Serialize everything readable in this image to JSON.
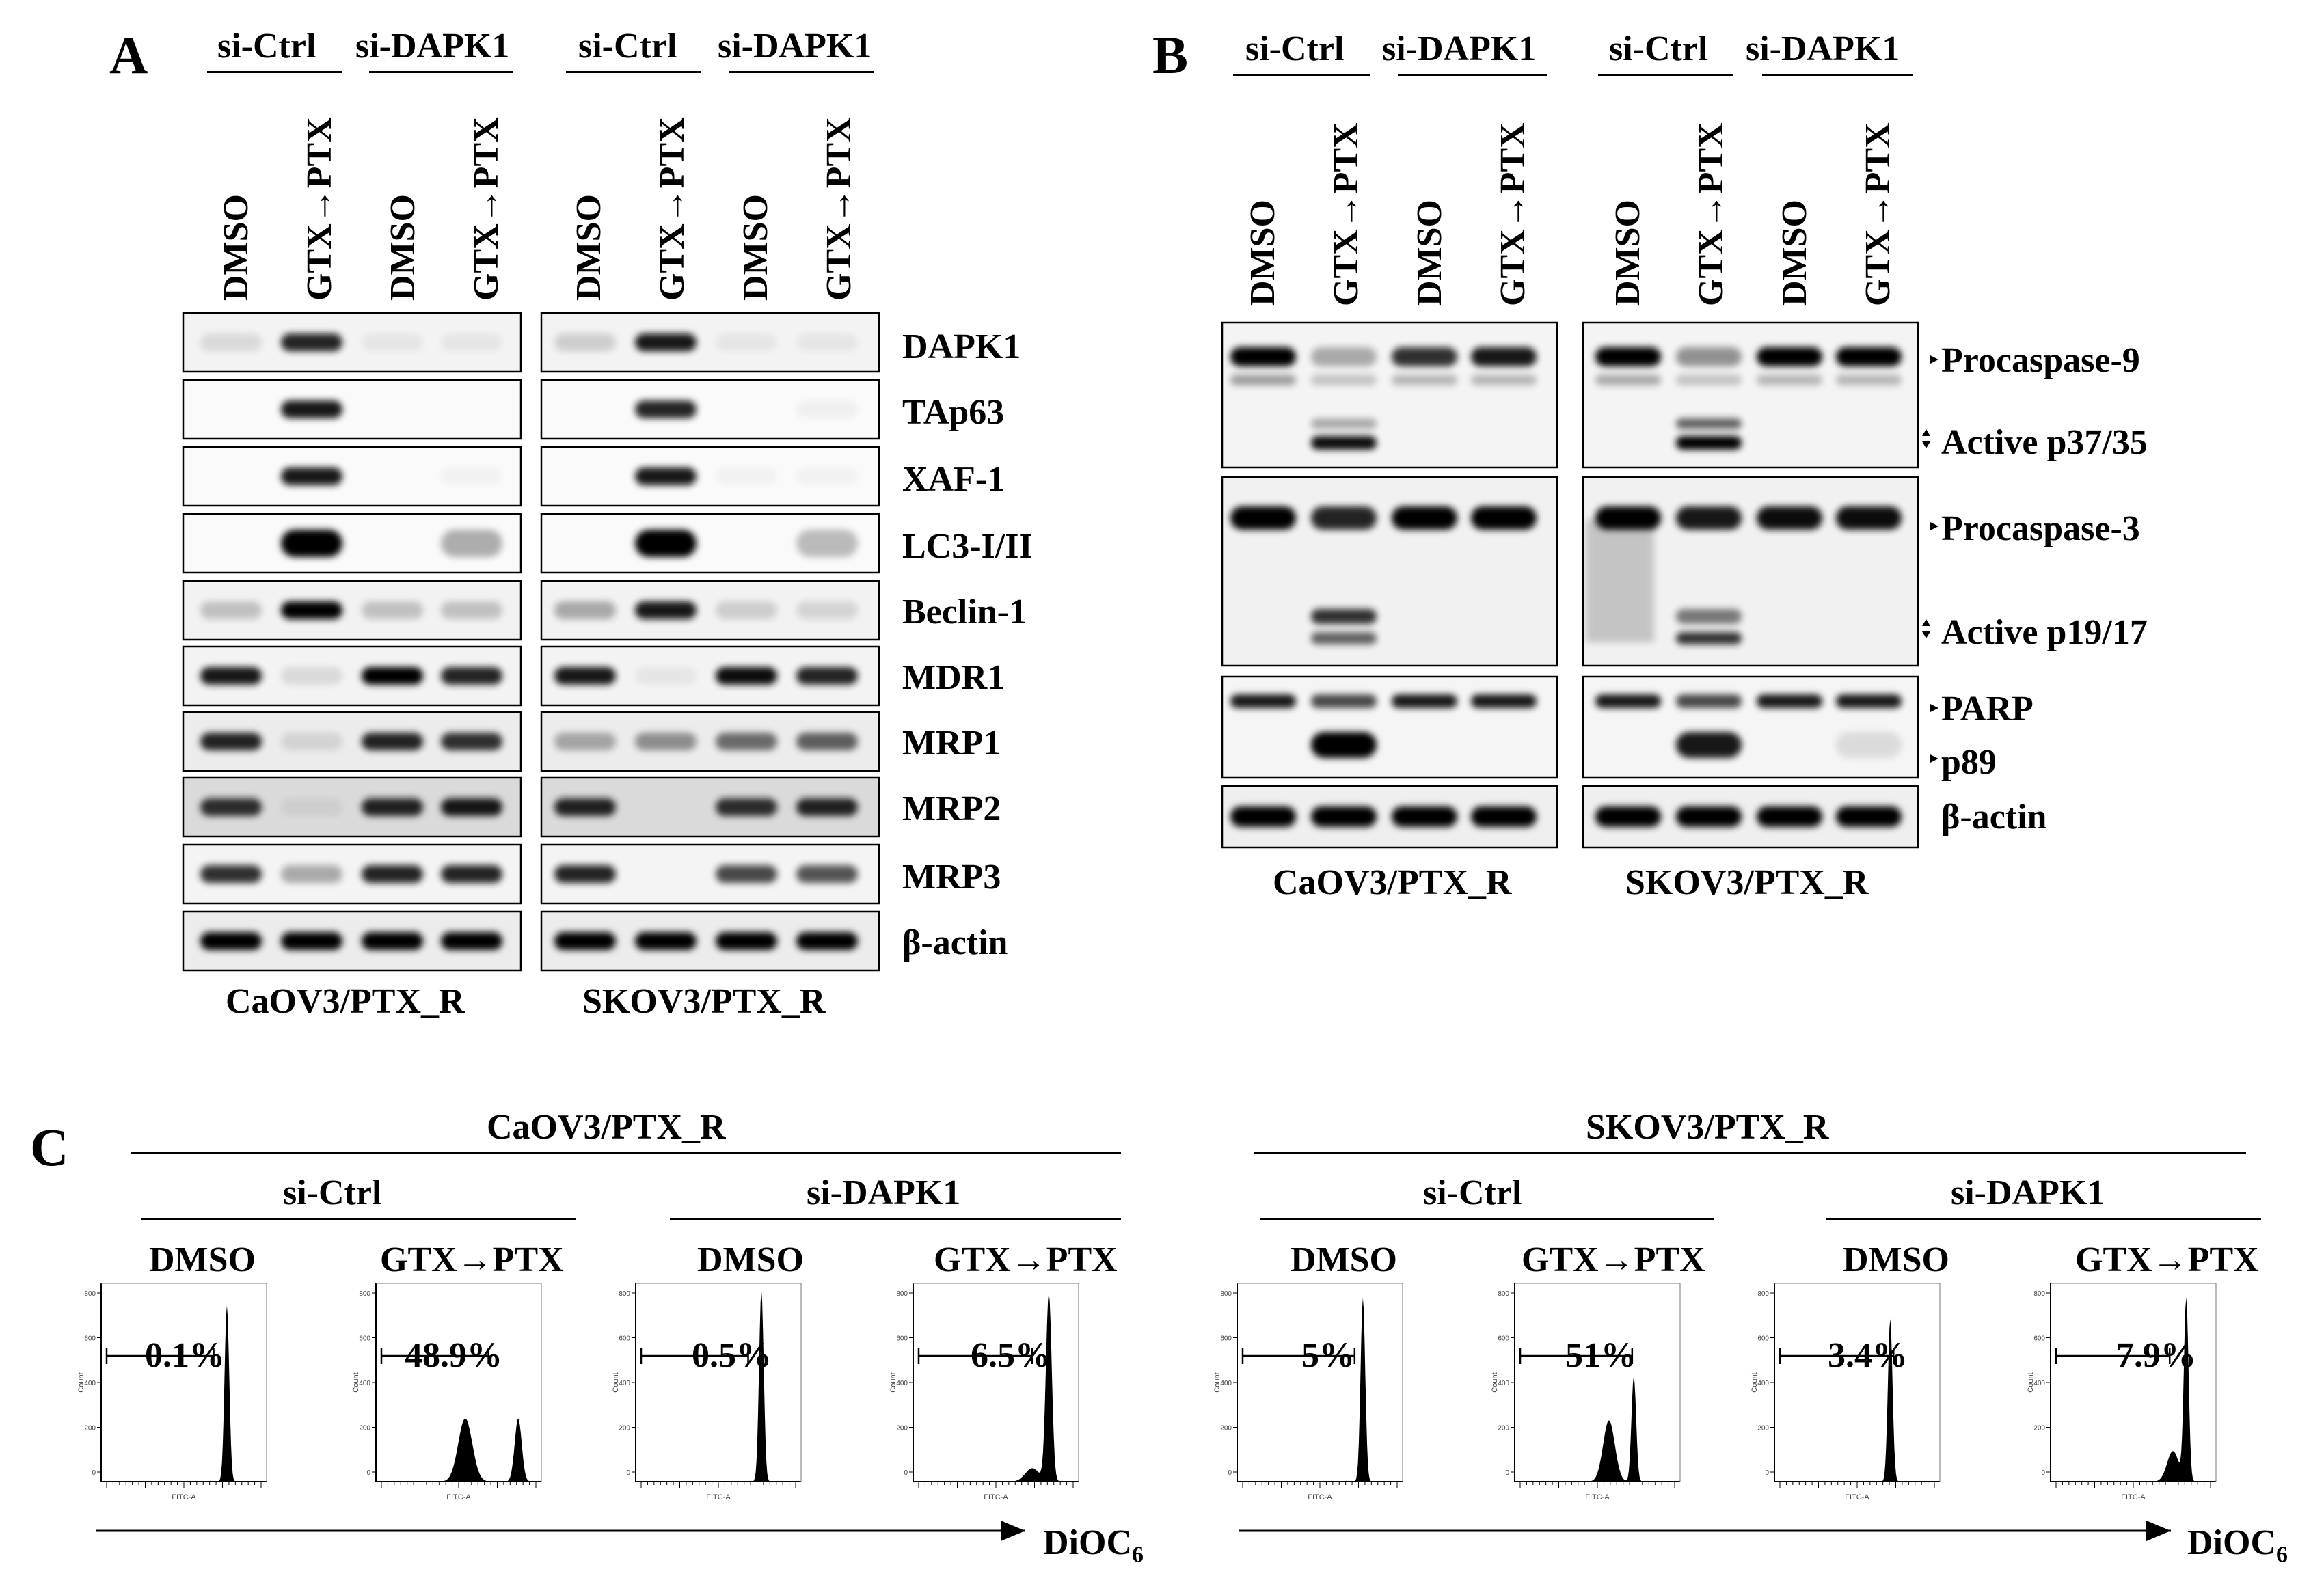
{
  "panels": {
    "A": "A",
    "B": "B",
    "C": "C"
  },
  "groups": {
    "ctrl": "si-Ctrl",
    "dapk": "si-DAPK1"
  },
  "lanes": {
    "dmso": "DMSO",
    "treat": "GTX→PTX"
  },
  "cell_lines": {
    "caov3": "CaOV3/PTX_R",
    "skov3": "SKOV3/PTX_R"
  },
  "panel_a_proteins": [
    "DAPK1",
    "TAp63",
    "XAF-1",
    "LC3-I/II",
    "Beclin-1",
    "MDR1",
    "MRP1",
    "MRP2",
    "MRP3",
    "β-actin"
  ],
  "panel_b_labels": {
    "pro9": "Procaspase-9",
    "act9": "Active p37/35",
    "pro3": "Procaspase-3",
    "act3": "Active p19/17",
    "parp": "PARP",
    "p89": "p89",
    "actin": "β-actin"
  },
  "flow": {
    "x_axis": "DiOC",
    "x_axis_sub": "6",
    "y_tick_label": "Count",
    "x_tick_label": "FITC-A",
    "values": {
      "caov3": {
        "ctrl_dmso": "0.1%",
        "ctrl_treat": "48.9%",
        "dapk_dmso": "0.5%",
        "dapk_treat": "6.5%"
      },
      "skov3": {
        "ctrl_dmso": "5%",
        "ctrl_treat": "51%",
        "dapk_dmso": "3.4%",
        "dapk_treat": "7.9%"
      }
    }
  }
}
